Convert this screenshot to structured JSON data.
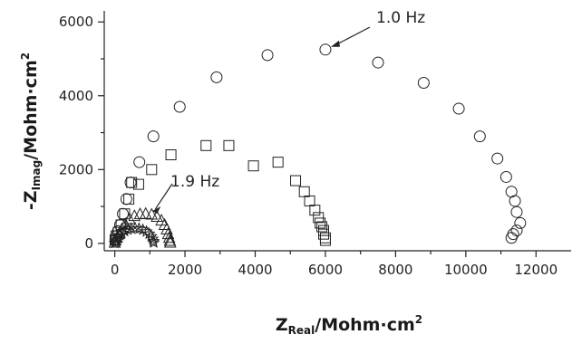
{
  "chart_data": {
    "type": "scatter",
    "title": "",
    "xlabel": {
      "main": "Z",
      "sub": "Real",
      "rest": "/Mohm·cm",
      "sup": "2"
    },
    "ylabel": {
      "prefix": "-Z",
      "sub": "Imag",
      "rest": "/Mohm·cm",
      "sup": "2"
    },
    "xlim": [
      -300,
      13000
    ],
    "ylim": [
      -200,
      6300
    ],
    "xticks": [
      0,
      2000,
      4000,
      6000,
      8000,
      10000,
      12000
    ],
    "yticks": [
      0,
      2000,
      4000,
      6000
    ],
    "grid": false,
    "series": [
      {
        "marker": "circle",
        "points": [
          [
            20,
            100
          ],
          [
            50,
            200
          ],
          [
            90,
            330
          ],
          [
            150,
            500
          ],
          [
            230,
            800
          ],
          [
            330,
            1200
          ],
          [
            450,
            1650
          ],
          [
            700,
            2200
          ],
          [
            1100,
            2900
          ],
          [
            1850,
            3700
          ],
          [
            2900,
            4500
          ],
          [
            4350,
            5100
          ],
          [
            6000,
            5250
          ],
          [
            7500,
            4900
          ],
          [
            8800,
            4350
          ],
          [
            9800,
            3650
          ],
          [
            10400,
            2900
          ],
          [
            10900,
            2300
          ],
          [
            11150,
            1800
          ],
          [
            11300,
            1400
          ],
          [
            11400,
            1150
          ],
          [
            11450,
            850
          ],
          [
            11550,
            550
          ],
          [
            11450,
            350
          ],
          [
            11350,
            250
          ],
          [
            11300,
            150
          ]
        ]
      },
      {
        "marker": "square",
        "points": [
          [
            10,
            100
          ],
          [
            40,
            200
          ],
          [
            100,
            300
          ],
          [
            180,
            500
          ],
          [
            280,
            800
          ],
          [
            400,
            1200
          ],
          [
            480,
            1650
          ],
          [
            680,
            1600
          ],
          [
            1050,
            2000
          ],
          [
            1600,
            2400
          ],
          [
            2600,
            2650
          ],
          [
            3250,
            2650
          ],
          [
            3950,
            2100
          ],
          [
            4650,
            2200
          ],
          [
            5150,
            1700
          ],
          [
            5400,
            1400
          ],
          [
            5550,
            1150
          ],
          [
            5700,
            900
          ],
          [
            5800,
            700
          ],
          [
            5850,
            550
          ],
          [
            5900,
            450
          ],
          [
            5950,
            350
          ],
          [
            5950,
            250
          ],
          [
            6000,
            150
          ],
          [
            6000,
            80
          ]
        ]
      },
      {
        "marker": "triangle",
        "points": [
          [
            0,
            20
          ],
          [
            20,
            80
          ],
          [
            60,
            150
          ],
          [
            120,
            250
          ],
          [
            200,
            380
          ],
          [
            300,
            520
          ],
          [
            420,
            660
          ],
          [
            560,
            740
          ],
          [
            720,
            790
          ],
          [
            880,
            800
          ],
          [
            1050,
            780
          ],
          [
            1200,
            720
          ],
          [
            1330,
            620
          ],
          [
            1420,
            500
          ],
          [
            1480,
            380
          ],
          [
            1520,
            250
          ],
          [
            1550,
            150
          ],
          [
            1570,
            70
          ],
          [
            1580,
            20
          ]
        ]
      },
      {
        "marker": "star",
        "points": [
          [
            0,
            10
          ],
          [
            20,
            50
          ],
          [
            50,
            100
          ],
          [
            90,
            160
          ],
          [
            140,
            220
          ],
          [
            200,
            280
          ],
          [
            280,
            330
          ],
          [
            370,
            370
          ],
          [
            470,
            400
          ],
          [
            580,
            410
          ],
          [
            690,
            400
          ],
          [
            800,
            370
          ],
          [
            900,
            320
          ],
          [
            980,
            260
          ],
          [
            1040,
            190
          ],
          [
            1080,
            120
          ],
          [
            1100,
            60
          ],
          [
            1110,
            20
          ]
        ]
      }
    ],
    "annotations": [
      {
        "text": "1.0 Hz",
        "point": [
          6000,
          5250
        ]
      },
      {
        "text": "1.9 Hz",
        "point": [
          1050,
          780
        ]
      }
    ]
  }
}
